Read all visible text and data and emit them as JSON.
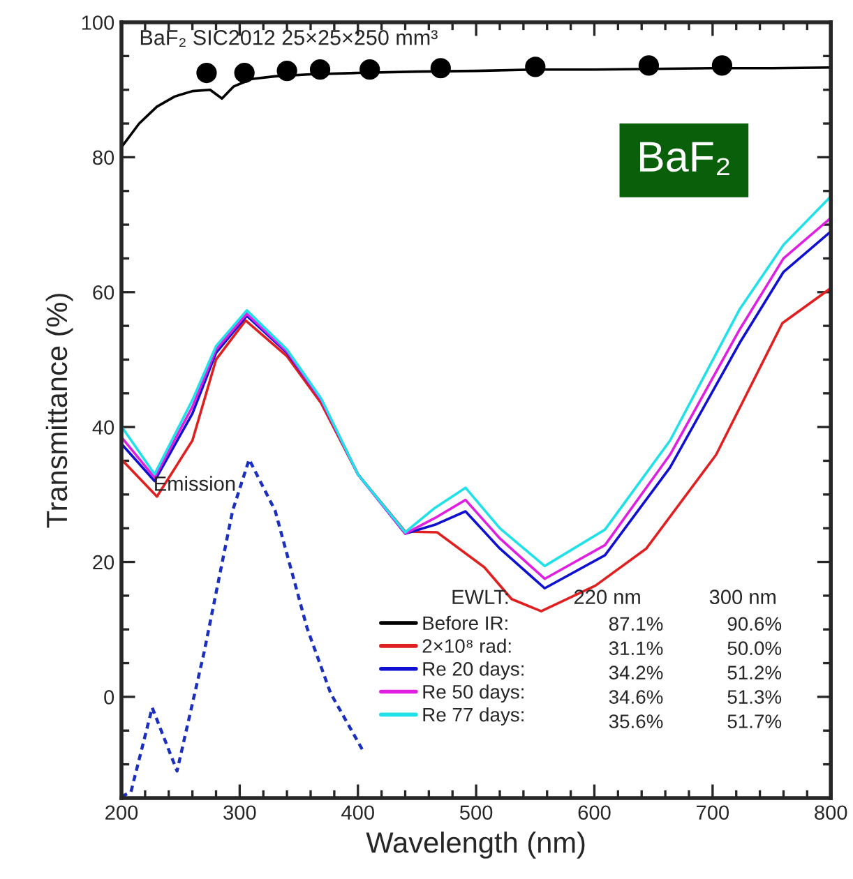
{
  "chart_data": {
    "type": "line",
    "title": "BaF₂ SIC2012 25×25×250 mm³",
    "xlabel": "Wavelength (nm)",
    "ylabel": "Transmittance (%)",
    "xlim": [
      200,
      800
    ],
    "xticks": [
      200,
      300,
      400,
      500,
      600,
      700,
      800
    ],
    "ylim": [
      -15,
      100
    ],
    "yticks": [
      0,
      20,
      40,
      60,
      80,
      100
    ],
    "grid": false,
    "legend": "bottom",
    "marker": "none",
    "series": [
      {
        "name": "Before IR:",
        "color": "#000000",
        "x": [
          200,
          215,
          230,
          245,
          260,
          275,
          285,
          295,
          310,
          330,
          360,
          400,
          450,
          500,
          550,
          600,
          650,
          700,
          750,
          800
        ],
        "values": [
          81.5,
          85,
          87.5,
          89,
          89.8,
          90,
          88.7,
          90.5,
          91.6,
          92,
          92.3,
          92.5,
          92.7,
          92.8,
          93,
          93,
          93.1,
          93.2,
          93.2,
          93.3
        ]
      },
      {
        "name": "2×10⁸ rad:",
        "color": "#e02020",
        "x": [
          200,
          230,
          260,
          280,
          305,
          340,
          369,
          400,
          440,
          467,
          507,
          530,
          555,
          601,
          644,
          703,
          759,
          800
        ],
        "values": [
          35.2,
          29.7,
          38,
          50,
          55.8,
          50.5,
          43.5,
          33,
          24.5,
          24.4,
          19.2,
          14.5,
          12.7,
          16.5,
          22,
          35.9,
          55.4,
          60.6
        ]
      },
      {
        "name": "Re 20 days:",
        "color": "#1010d0",
        "x": [
          200,
          228,
          260,
          280,
          306,
          340,
          369,
          400,
          440,
          465,
          491,
          520,
          558,
          609,
          664,
          723,
          760,
          800
        ],
        "values": [
          37.5,
          32,
          42,
          51,
          56.5,
          51,
          44,
          33,
          24.2,
          25.5,
          27.5,
          22,
          16.1,
          21,
          34,
          52.5,
          63,
          69
        ]
      },
      {
        "name": "Re 50 days:",
        "color": "#e020e0",
        "x": [
          200,
          228,
          260,
          280,
          306,
          340,
          369,
          400,
          440,
          465,
          491,
          520,
          558,
          609,
          664,
          723,
          760,
          800
        ],
        "values": [
          38.5,
          32.5,
          43,
          51.5,
          56.8,
          51.2,
          44,
          33,
          24.2,
          26.5,
          29.2,
          23.5,
          17.5,
          22.5,
          35.9,
          54.5,
          65,
          71
        ]
      },
      {
        "name": "Re 77 days:",
        "color": "#20e0e8",
        "x": [
          200,
          228,
          260,
          280,
          306,
          340,
          369,
          400,
          440,
          465,
          491,
          520,
          558,
          609,
          664,
          723,
          760,
          800
        ],
        "values": [
          40.1,
          33,
          44,
          52,
          57.3,
          51.5,
          44.2,
          33,
          24.4,
          28,
          31,
          25,
          19.4,
          24.8,
          38,
          57.5,
          67,
          74.2
        ]
      },
      {
        "color": "#1a2fc0",
        "line_style": "dotted",
        "x": [
          200,
          208,
          226,
          247,
          270,
          294,
          308,
          330,
          357,
          377,
          404
        ],
        "values": [
          -14.8,
          -14.1,
          -1.6,
          -11,
          6.7,
          27.6,
          35.2,
          27.6,
          10.2,
          0.5,
          -7.9
        ]
      },
      {
        "type": "scatter",
        "marker": "circle",
        "color": "#000000",
        "x": [
          272,
          304,
          340,
          368,
          410,
          470,
          550,
          646,
          708
        ],
        "values": [
          92.5,
          92.5,
          92.8,
          93,
          93,
          93.2,
          93.4,
          93.6,
          93.6
        ]
      }
    ],
    "annotations": [
      "Emission",
      "BaF₂",
      "EWLT:",
      "220 nm",
      "300 nm",
      "87.1%",
      "90.6%",
      "31.1%",
      "50.0%",
      "34.2%",
      "51.2%",
      "34.6%",
      "51.3%",
      "35.6%",
      "51.7%"
    ]
  }
}
